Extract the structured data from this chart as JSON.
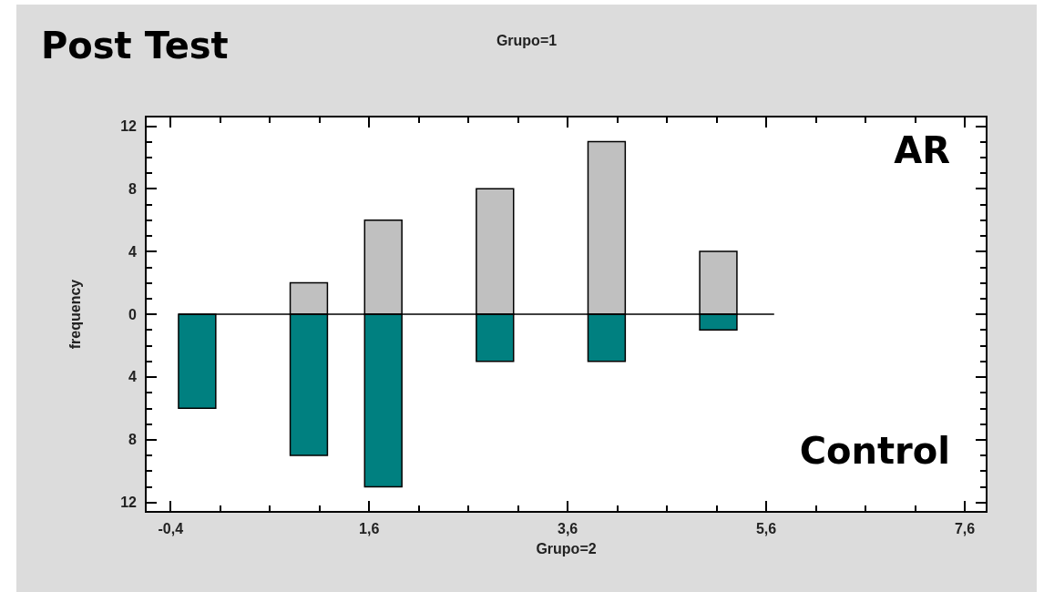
{
  "chart_data": {
    "type": "histogram",
    "title": "Post Test",
    "subtitle": "Grupo=1",
    "xlabel": "Grupo=2",
    "ylabel": "frequency",
    "bins": [
      -0.32,
      0.055,
      0.43,
      0.805,
      1.18,
      1.555,
      1.93,
      2.305,
      2.68,
      3.055,
      3.43,
      3.805,
      4.18,
      4.555,
      4.93,
      5.305,
      5.68
    ],
    "series": [
      {
        "name": "AR",
        "color": "#c0c0c0",
        "values": [
          0,
          0,
          0,
          2,
          0,
          6,
          0,
          0,
          8,
          0,
          0,
          11,
          0,
          0,
          4,
          0
        ]
      },
      {
        "name": "Control",
        "color": "#008080",
        "values": [
          -6,
          0,
          0,
          -9,
          0,
          -11,
          0,
          0,
          -3,
          0,
          0,
          -3,
          0,
          0,
          -1,
          0
        ]
      }
    ],
    "xlim": [
      -0.65,
      7.82
    ],
    "xticks": [
      {
        "value": -0.4,
        "label": "-0,4"
      },
      {
        "value": 1.6,
        "label": "1,6"
      },
      {
        "value": 3.6,
        "label": "3,6"
      },
      {
        "value": 5.6,
        "label": "5,6"
      },
      {
        "value": 7.6,
        "label": "7,6"
      }
    ],
    "ylim": [
      -12.6,
      12.6
    ],
    "yticks": [
      {
        "value": -12,
        "label": "12"
      },
      {
        "value": -8,
        "label": "8"
      },
      {
        "value": -4,
        "label": "4"
      },
      0,
      4,
      8,
      12
    ],
    "legend": "right"
  }
}
